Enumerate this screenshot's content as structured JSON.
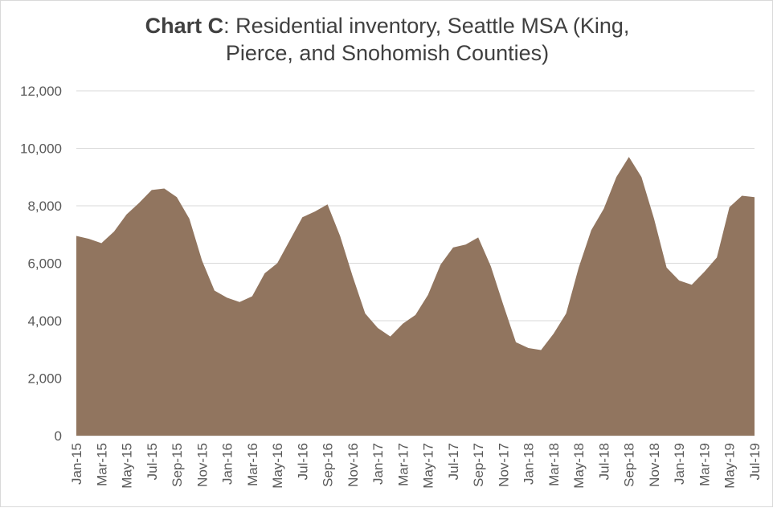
{
  "title": {
    "bold": "Chart C",
    "rest_line1": ": Residential inventory, Seattle MSA (King,",
    "line2": "Pierce, and Snohomish Counties)"
  },
  "colors": {
    "area": "#91755F",
    "grid": "#d9d9d9",
    "text": "#595959"
  },
  "chart_data": {
    "type": "area",
    "title": "Chart C: Residential inventory, Seattle MSA (King, Pierce, and Snohomish Counties)",
    "xlabel": "",
    "ylabel": "",
    "ylim": [
      0,
      12000
    ],
    "y_ticks": [
      "0",
      "2,000",
      "4,000",
      "6,000",
      "8,000",
      "10,000",
      "12,000"
    ],
    "grid": true,
    "legend": "none",
    "x": [
      "Jan-15",
      "Feb-15",
      "Mar-15",
      "Apr-15",
      "May-15",
      "Jun-15",
      "Jul-15",
      "Aug-15",
      "Sep-15",
      "Oct-15",
      "Nov-15",
      "Dec-15",
      "Jan-16",
      "Feb-16",
      "Mar-16",
      "Apr-16",
      "May-16",
      "Jun-16",
      "Jul-16",
      "Aug-16",
      "Sep-16",
      "Oct-16",
      "Nov-16",
      "Dec-16",
      "Jan-17",
      "Feb-17",
      "Mar-17",
      "Apr-17",
      "May-17",
      "Jun-17",
      "Jul-17",
      "Aug-17",
      "Sep-17",
      "Oct-17",
      "Nov-17",
      "Dec-17",
      "Jan-18",
      "Feb-18",
      "Mar-18",
      "Apr-18",
      "May-18",
      "Jun-18",
      "Jul-18",
      "Aug-18",
      "Sep-18",
      "Oct-18",
      "Nov-18",
      "Dec-18",
      "Jan-19",
      "Feb-19",
      "Mar-19",
      "Apr-19",
      "May-19",
      "Jun-19",
      "Jul-19"
    ],
    "x_tick_labels": [
      "Jan-15",
      "Mar-15",
      "May-15",
      "Jul-15",
      "Sep-15",
      "Nov-15",
      "Jan-16",
      "Mar-16",
      "May-16",
      "Jul-16",
      "Sep-16",
      "Nov-16",
      "Jan-17",
      "Mar-17",
      "May-17",
      "Jul-17",
      "Sep-17",
      "Nov-17",
      "Jan-18",
      "Mar-18",
      "May-18",
      "Jul-18",
      "Sep-18",
      "Nov-18",
      "Jan-19",
      "Mar-19",
      "May-19",
      "Jul-19"
    ],
    "series": [
      {
        "values": [
          6950,
          6850,
          6700,
          7100,
          7700,
          8100,
          8550,
          8600,
          8300,
          7550,
          6100,
          5050,
          4800,
          4650,
          4850,
          5650,
          6000,
          6800,
          7600,
          7800,
          8050,
          6950,
          5550,
          4250,
          3750,
          3450,
          3900,
          4200,
          4900,
          5950,
          6550,
          6650,
          6900,
          5900,
          4550,
          3250,
          3050,
          2980,
          3550,
          4250,
          5850,
          7150,
          7900,
          9000,
          9700,
          9000,
          7550,
          5850,
          5400,
          5250,
          5700,
          6200,
          7950,
          8350,
          8300
        ]
      }
    ]
  }
}
